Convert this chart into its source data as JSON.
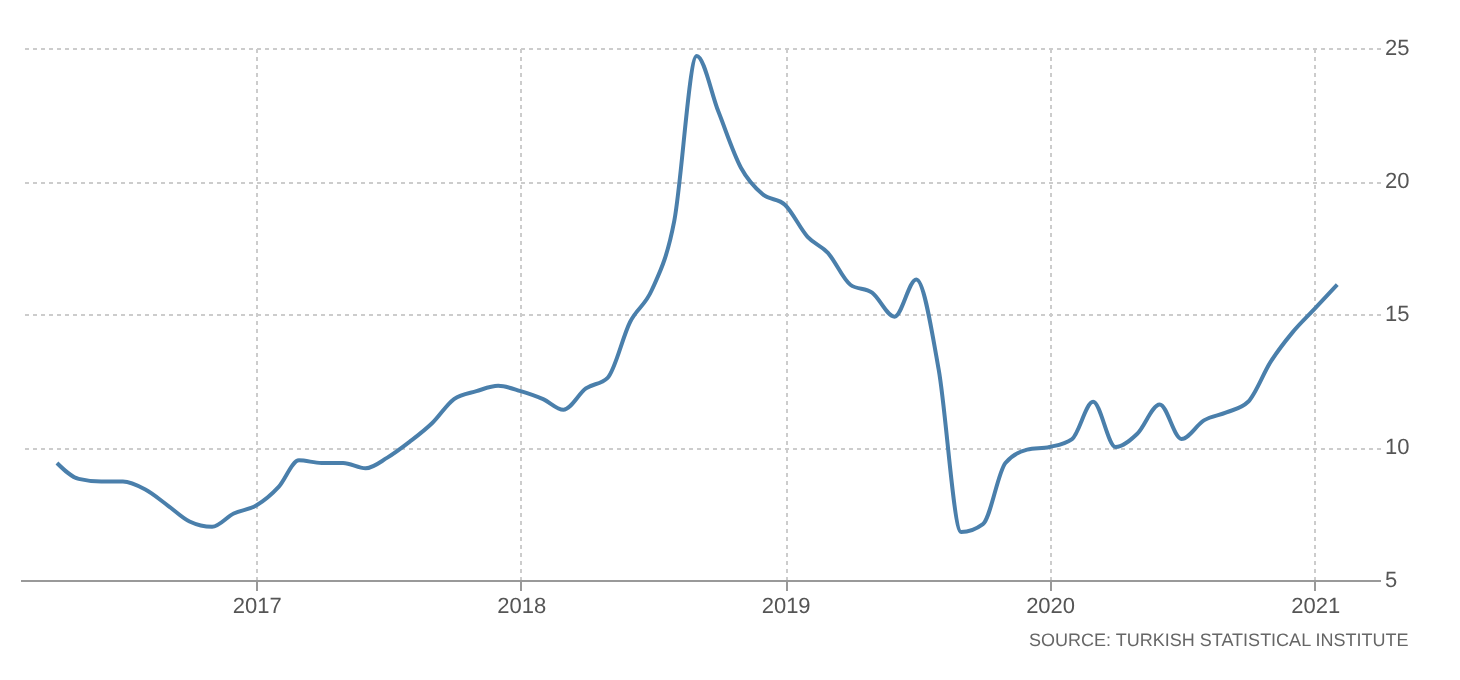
{
  "chart_data": {
    "type": "line",
    "x": [
      "2016-04",
      "2016-05",
      "2016-06",
      "2016-07",
      "2016-08",
      "2016-09",
      "2016-10",
      "2016-11",
      "2016-12",
      "2017-01",
      "2017-02",
      "2017-03",
      "2017-04",
      "2017-05",
      "2017-06",
      "2017-07",
      "2017-08",
      "2017-09",
      "2017-10",
      "2017-11",
      "2017-12",
      "2018-01",
      "2018-02",
      "2018-03",
      "2018-04",
      "2018-05",
      "2018-06",
      "2018-07",
      "2018-08",
      "2018-09",
      "2018-10",
      "2018-11",
      "2018-12",
      "2019-01",
      "2019-02",
      "2019-03",
      "2019-04",
      "2019-05",
      "2019-06",
      "2019-07",
      "2019-08",
      "2019-09",
      "2019-10",
      "2019-11",
      "2019-12",
      "2020-01",
      "2020-02",
      "2020-03",
      "2020-04",
      "2020-05",
      "2020-06",
      "2020-07",
      "2020-08",
      "2020-09",
      "2020-10",
      "2020-11",
      "2020-12",
      "2021-01",
      "2021-02"
    ],
    "series": [
      {
        "color": "#4a7fab",
        "values": [
          9.4,
          8.8,
          8.7,
          8.7,
          8.4,
          7.8,
          7.2,
          7.0,
          7.5,
          7.8,
          8.5,
          9.5,
          9.4,
          9.4,
          9.2,
          9.6,
          10.2,
          10.9,
          11.8,
          12.1,
          12.3,
          12.1,
          11.8,
          11.4,
          12.2,
          12.6,
          14.7,
          15.9,
          18.5,
          24.7,
          22.6,
          20.5,
          19.5,
          19.1,
          17.9,
          17.3,
          16.1,
          15.8,
          14.9,
          16.3,
          12.9,
          6.8,
          7.1,
          9.4,
          9.9,
          10.0,
          10.3,
          11.7,
          10.0,
          10.5,
          11.6,
          10.3,
          11.0,
          11.3,
          11.7,
          13.2,
          14.3,
          15.2,
          16.1
        ]
      }
    ],
    "xlim": [
      "2016-02-10",
      "2021-04-01"
    ],
    "xticks": [
      "2017",
      "2018",
      "2019",
      "2020",
      "2021"
    ],
    "ylim": [
      5,
      25
    ],
    "yticks": [
      5,
      10,
      15,
      20,
      25
    ],
    "grid": true,
    "marker": "none",
    "line_style": "solid",
    "annotations": [
      "SOURCE: TURKISH STATISTICAL INSTITUTE"
    ]
  }
}
